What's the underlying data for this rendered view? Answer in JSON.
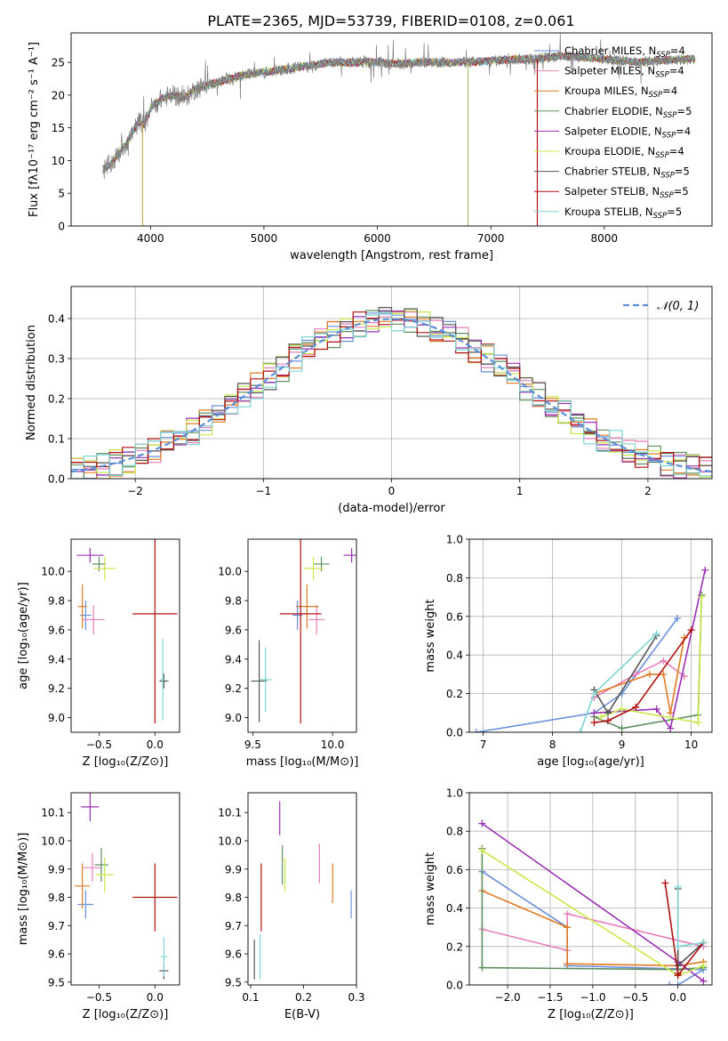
{
  "figure": {
    "title": "PLATE=2365, MJD=53739, FIBERID=0108, z=0.061"
  },
  "series": [
    {
      "name_pre": "Chabrier MILES, N",
      "color": "#6a8fdb"
    },
    {
      "name_pre": "Salpeter MILES, N",
      "color": "#e67fb9"
    },
    {
      "name_pre": "Kroupa MILES, N",
      "color": "#e07b22"
    },
    {
      "name_pre": "Chabrier ELODIE, N",
      "color": "#5d8f5d"
    },
    {
      "name_pre": "Salpeter ELODIE, N",
      "color": "#9b30b5"
    },
    {
      "name_pre": "Kroupa ELODIE, N",
      "color": "#c8e84a"
    },
    {
      "name_pre": "Chabrier STELIB, N",
      "color": "#555555"
    },
    {
      "name_pre": "Salpeter STELIB, N",
      "color": "#b01010"
    },
    {
      "name_pre": "Kroupa STELIB, N",
      "color": "#7dd4d4"
    }
  ],
  "chart_data": [
    {
      "id": "spectrum",
      "type": "line",
      "xlabel": "wavelength [Angstrom, rest frame]",
      "ylabel": "Flux [fλ10⁻¹⁷ erg cm⁻² s⁻¹ A⁻¹]",
      "xlim": [
        3300,
        8950
      ],
      "ylim": [
        0,
        29.5
      ],
      "xticks": [
        4000,
        5000,
        6000,
        7000,
        8000
      ],
      "yticks": [
        0,
        5,
        10,
        15,
        20,
        25
      ],
      "data_color": "#808080",
      "legend_nssp": [
        "4",
        "4",
        "4",
        "5",
        "4",
        "4",
        "5",
        "5",
        "5"
      ],
      "legend_sub": "SSP",
      "continuum": [
        [
          3580,
          8.5
        ],
        [
          3650,
          9.5
        ],
        [
          3700,
          10.5
        ],
        [
          3800,
          13
        ],
        [
          3900,
          16
        ],
        [
          3950,
          15.5
        ],
        [
          4000,
          18
        ],
        [
          4100,
          19.5
        ],
        [
          4200,
          20
        ],
        [
          4300,
          19.5
        ],
        [
          4400,
          21
        ],
        [
          4600,
          22
        ],
        [
          4800,
          23
        ],
        [
          5000,
          23.5
        ],
        [
          5200,
          24
        ],
        [
          5400,
          24.5
        ],
        [
          5600,
          25
        ],
        [
          5800,
          25
        ],
        [
          6000,
          25
        ],
        [
          6200,
          24.8
        ],
        [
          6400,
          25
        ],
        [
          6600,
          25
        ],
        [
          6800,
          25
        ],
        [
          7000,
          25.2
        ],
        [
          7200,
          25.5
        ],
        [
          7400,
          25.5
        ],
        [
          7600,
          26
        ],
        [
          7800,
          25.8
        ],
        [
          8000,
          25.5
        ],
        [
          8300,
          25
        ],
        [
          8500,
          25.3
        ],
        [
          8800,
          25.5
        ]
      ],
      "drops": [
        [
          3930,
          0
        ],
        [
          6800,
          0
        ],
        [
          7410,
          0
        ]
      ],
      "legend_loc": "upper right"
    },
    {
      "id": "residuals",
      "type": "step",
      "xlabel": "(data-model)/error",
      "ylabel": "Normed distribution",
      "xlim": [
        -2.5,
        2.5
      ],
      "ylim": [
        0,
        0.48
      ],
      "xticks": [
        -2,
        -1,
        0,
        1,
        2
      ],
      "yticks": [
        0,
        0.1,
        0.2,
        0.3,
        0.4
      ],
      "gauss_label": "𝒩(0, 1)",
      "gauss_color": "#5b8fd8",
      "bin_width": 0.1,
      "legend_loc": "upper right",
      "grid": true
    },
    {
      "id": "Z-age",
      "type": "errorbar",
      "xlabel": "Z [log₁₀(Z/Z⊙)]",
      "ylabel": "age  [log₁₀(age/yr)]",
      "xlim": [
        -0.75,
        0.22
      ],
      "ylim": [
        8.9,
        10.22
      ],
      "xticks": [
        -0.5,
        0.0
      ],
      "yticks": [
        9.0,
        9.2,
        9.4,
        9.6,
        9.8,
        10.0
      ],
      "points": [
        {
          "x": -0.62,
          "xerr": 0.05,
          "y": 9.7,
          "yerr": 0.1
        },
        {
          "x": -0.55,
          "xerr": 0.1,
          "y": 9.67,
          "yerr": 0.1
        },
        {
          "x": -0.65,
          "xerr": 0.04,
          "y": 9.76,
          "yerr": 0.15
        },
        {
          "x": -0.5,
          "xerr": 0.06,
          "y": 10.05,
          "yerr": 0.05
        },
        {
          "x": -0.58,
          "xerr": 0.12,
          "y": 10.11,
          "yerr": 0.05
        },
        {
          "x": -0.45,
          "xerr": 0.1,
          "y": 10.02,
          "yerr": 0.08
        },
        {
          "x": 0.08,
          "xerr": 0.04,
          "y": 9.25,
          "yerr": 0.05
        },
        {
          "x": 0.0,
          "xerr": 0.2,
          "y": 9.71,
          "yerr": 0.75
        },
        {
          "x": 0.07,
          "xerr": 0.02,
          "y": 9.26,
          "yerr": 0.28
        }
      ]
    },
    {
      "id": "mass-age",
      "type": "errorbar",
      "xlabel": "mass [log₁₀(M/M⊙)]",
      "ylabel": "",
      "xlim": [
        9.47,
        10.15
      ],
      "ylim": [
        8.9,
        10.22
      ],
      "xticks": [
        9.5,
        10.0
      ],
      "yticks": [
        9.0,
        9.2,
        9.4,
        9.6,
        9.8,
        10.0
      ],
      "points": [
        {
          "x": 9.78,
          "xerr": 0.03,
          "y": 9.7,
          "yerr": 0.1
        },
        {
          "x": 9.9,
          "xerr": 0.05,
          "y": 9.67,
          "yerr": 0.1
        },
        {
          "x": 9.84,
          "xerr": 0.07,
          "y": 9.76,
          "yerr": 0.15
        },
        {
          "x": 9.93,
          "xerr": 0.05,
          "y": 10.05,
          "yerr": 0.05
        },
        {
          "x": 10.12,
          "xerr": 0.05,
          "y": 10.11,
          "yerr": 0.05
        },
        {
          "x": 9.88,
          "xerr": 0.06,
          "y": 10.02,
          "yerr": 0.08
        },
        {
          "x": 9.54,
          "xerr": 0.05,
          "y": 9.25,
          "yerr": 0.28
        },
        {
          "x": 9.8,
          "xerr": 0.13,
          "y": 9.71,
          "yerr": 0.75
        },
        {
          "x": 9.58,
          "xerr": 0.04,
          "y": 9.26,
          "yerr": 0.22
        }
      ]
    },
    {
      "id": "age-weight",
      "type": "line",
      "xlabel": "age  [log₁₀(age/yr)]",
      "ylabel": "mass weight",
      "xlim": [
        6.8,
        10.3
      ],
      "ylim": [
        0,
        1.0
      ],
      "xticks": [
        7,
        8,
        9,
        10
      ],
      "yticks": [
        0.0,
        0.2,
        0.4,
        0.6,
        0.8,
        1.0
      ],
      "grid": true,
      "series": [
        {
          "x": [
            6.9,
            8.6,
            9.0,
            9.8
          ],
          "y": [
            0.0,
            0.1,
            0.2,
            0.59
          ]
        },
        {
          "x": [
            8.6,
            9.2,
            9.6,
            9.9
          ],
          "y": [
            0.18,
            0.3,
            0.37,
            0.29
          ]
        },
        {
          "x": [
            8.6,
            9.4,
            9.6,
            9.7,
            9.9
          ],
          "y": [
            0.2,
            0.3,
            0.3,
            0.1,
            0.49
          ]
        },
        {
          "x": [
            8.6,
            9.0,
            10.1,
            10.15
          ],
          "y": [
            0.08,
            0.02,
            0.09,
            0.71
          ]
        },
        {
          "x": [
            8.6,
            9.5,
            9.7,
            10.2
          ],
          "y": [
            0.1,
            0.12,
            0.02,
            0.84
          ]
        },
        {
          "x": [
            8.7,
            9.0,
            10.1,
            10.15
          ],
          "y": [
            0.08,
            0.12,
            0.05,
            0.7
          ]
        },
        {
          "x": [
            8.6,
            8.8,
            9.5
          ],
          "y": [
            0.22,
            0.1,
            0.5
          ]
        },
        {
          "x": [
            8.6,
            8.8,
            9.2,
            10.0
          ],
          "y": [
            0.05,
            0.06,
            0.13,
            0.53
          ]
        },
        {
          "x": [
            8.4,
            8.6,
            9.5
          ],
          "y": [
            0.0,
            0.2,
            0.51
          ]
        }
      ]
    },
    {
      "id": "Z-mass",
      "type": "errorbar",
      "xlabel": "Z [log₁₀(Z/Z⊙)]",
      "ylabel": "mass [log₁₀(M/M⊙)]",
      "xlim": [
        -0.75,
        0.22
      ],
      "ylim": [
        9.49,
        10.17
      ],
      "xticks": [
        -0.5,
        0.0
      ],
      "yticks": [
        9.5,
        9.6,
        9.7,
        9.8,
        9.9,
        10.0,
        10.1
      ],
      "points": [
        {
          "x": -0.62,
          "xerr": 0.07,
          "y": 9.775,
          "yerr": 0.05
        },
        {
          "x": -0.56,
          "xerr": 0.08,
          "y": 9.905,
          "yerr": 0.05
        },
        {
          "x": -0.65,
          "xerr": 0.07,
          "y": 9.84,
          "yerr": 0.08
        },
        {
          "x": -0.48,
          "xerr": 0.06,
          "y": 9.915,
          "yerr": 0.06
        },
        {
          "x": -0.58,
          "xerr": 0.08,
          "y": 10.12,
          "yerr": 0.05
        },
        {
          "x": -0.45,
          "xerr": 0.08,
          "y": 9.88,
          "yerr": 0.06
        },
        {
          "x": 0.08,
          "xerr": 0.04,
          "y": 9.54,
          "yerr": 0.03
        },
        {
          "x": 0.0,
          "xerr": 0.2,
          "y": 9.8,
          "yerr": 0.12
        },
        {
          "x": 0.08,
          "xerr": 0.03,
          "y": 9.59,
          "yerr": 0.07
        }
      ]
    },
    {
      "id": "ebv-mass",
      "type": "errorbar",
      "xlabel": "E(B-V)",
      "ylabel": "",
      "xlim": [
        0.095,
        0.3
      ],
      "ylim": [
        9.49,
        10.17
      ],
      "xticks": [
        0.1,
        0.2,
        0.3
      ],
      "yticks": [
        9.5,
        9.6,
        9.7,
        9.8,
        9.9,
        10.0,
        10.1
      ],
      "points": [
        {
          "x": 0.29,
          "xerr": 0.0,
          "y": 9.775,
          "yerr": 0.05
        },
        {
          "x": 0.23,
          "xerr": 0.0,
          "y": 9.92,
          "yerr": 0.07
        },
        {
          "x": 0.255,
          "xerr": 0.0,
          "y": 9.85,
          "yerr": 0.07
        },
        {
          "x": 0.16,
          "xerr": 0.0,
          "y": 9.915,
          "yerr": 0.07
        },
        {
          "x": 0.155,
          "xerr": 0.0,
          "y": 10.08,
          "yerr": 0.06
        },
        {
          "x": 0.165,
          "xerr": 0.0,
          "y": 9.88,
          "yerr": 0.06
        },
        {
          "x": 0.107,
          "xerr": 0.0,
          "y": 9.58,
          "yerr": 0.07
        },
        {
          "x": 0.12,
          "xerr": 0.0,
          "y": 9.8,
          "yerr": 0.12
        },
        {
          "x": 0.118,
          "xerr": 0.0,
          "y": 9.59,
          "yerr": 0.08
        }
      ]
    },
    {
      "id": "Z-weight",
      "type": "line",
      "xlabel": "Z [log₁₀(Z/Z⊙)]",
      "ylabel": "mass weight",
      "xlim": [
        -2.45,
        0.4
      ],
      "ylim": [
        0,
        1.0
      ],
      "xticks": [
        -2.0,
        -1.5,
        -1.0,
        -0.5,
        0.0
      ],
      "yticks": [
        0.0,
        0.2,
        0.4,
        0.6,
        0.8,
        1.0
      ],
      "grid": true,
      "series": [
        {
          "x": [
            -2.3,
            -1.3,
            -1.3,
            0.3,
            0.0,
            -0.1
          ],
          "y": [
            0.59,
            0.3,
            0.1,
            0.08,
            0.0,
            0.0
          ]
        },
        {
          "x": [
            -2.3,
            -1.3,
            -1.3,
            0.3
          ],
          "y": [
            0.29,
            0.18,
            0.37,
            0.2
          ]
        },
        {
          "x": [
            -2.3,
            -1.3,
            -1.3,
            0.0,
            0.3
          ],
          "y": [
            0.49,
            0.3,
            0.11,
            0.1,
            0.12
          ]
        },
        {
          "x": [
            -2.3,
            -2.3,
            0.0,
            0.3
          ],
          "y": [
            0.71,
            0.09,
            0.08,
            0.09
          ]
        },
        {
          "x": [
            -2.3,
            0.0,
            0.3
          ],
          "y": [
            0.84,
            0.12,
            0.02
          ]
        },
        {
          "x": [
            -2.3,
            0.0,
            0.3
          ],
          "y": [
            0.7,
            0.05,
            0.1
          ]
        },
        {
          "x": [
            0.0,
            0.0,
            0.3
          ],
          "y": [
            0.5,
            0.1,
            0.22
          ]
        },
        {
          "x": [
            -0.15,
            0.0,
            0.0,
            0.3
          ],
          "y": [
            0.53,
            0.06,
            0.05,
            0.22
          ]
        },
        {
          "x": [
            0.0,
            0.0,
            0.3
          ],
          "y": [
            0.51,
            0.2,
            0.22
          ]
        }
      ]
    }
  ]
}
